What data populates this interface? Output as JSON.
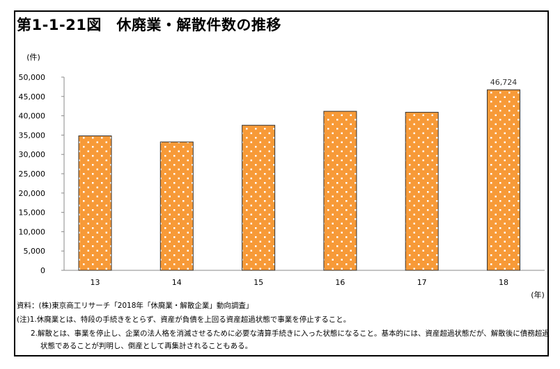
{
  "title": "第1-1-21図　休廃業・解散件数の推移",
  "chart_data": {
    "type": "bar",
    "categories": [
      "13",
      "14",
      "15",
      "16",
      "17",
      "18"
    ],
    "values": [
      34800,
      33231,
      37548,
      41162,
      40909,
      46724
    ],
    "data_labels": [
      "",
      "",
      "",
      "",
      "",
      "46,724"
    ],
    "ylabel": "(件)",
    "xlabel": "(年)",
    "ylim": [
      0,
      50000
    ],
    "yticks": [
      "0",
      "5,000",
      "10,000",
      "15,000",
      "20,000",
      "25,000",
      "30,000",
      "35,000",
      "40,000",
      "45,000",
      "50,000"
    ],
    "grid": false,
    "bar_color": "#f79a38",
    "pattern": "white dots"
  },
  "notes": {
    "source": "資料：(株)東京商工リサーチ「2018年「休廃業・解散企業」動向調査」",
    "note1": "(注)1.休廃業とは、特段の手続きをとらず、資産が負債を上回る資産超過状態で事業を停止すること。",
    "note2a": "2.解散とは、事業を停止し、企業の法人格を消滅させるために必要な清算手続きに入った状態になること。基本的には、資産超過状態だが、解散後に債務超過",
    "note2b": "状態であることが判明し、倒産として再集計されることもある。"
  }
}
